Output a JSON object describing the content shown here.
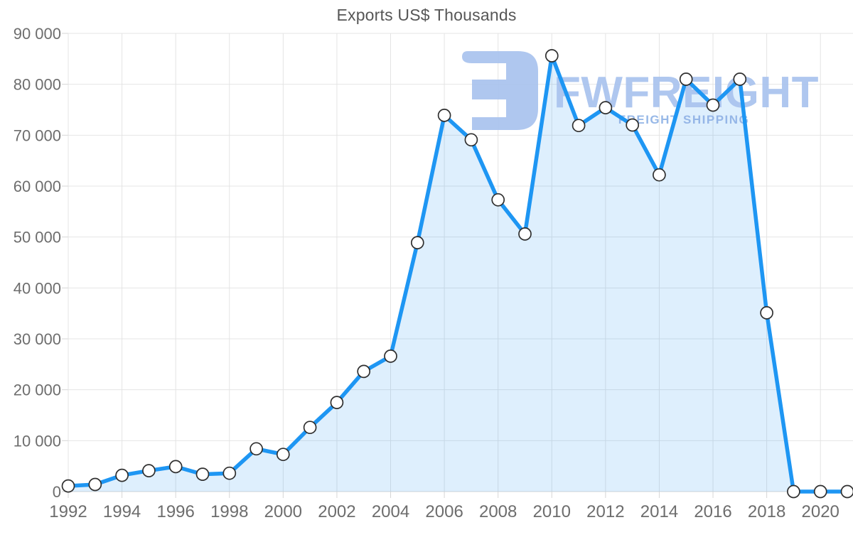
{
  "title": "Exports US$ Thousands",
  "watermark": {
    "logo_icon": "fwfreight-logo-icon",
    "brand": "FWFREIGHT",
    "tagline": "FREIGHT SHIPPING",
    "brand_color": "#a9c3ee",
    "tagline_color": "#8fb2e6"
  },
  "chart_data": {
    "type": "area",
    "title": "Exports US$ Thousands",
    "xlabel": "",
    "ylabel": "",
    "x": [
      1992,
      1993,
      1994,
      1995,
      1996,
      1997,
      1998,
      1999,
      2000,
      2001,
      2002,
      2003,
      2004,
      2005,
      2006,
      2007,
      2008,
      2009,
      2010,
      2011,
      2012,
      2013,
      2014,
      2015,
      2016,
      2017,
      2018,
      2019,
      2020,
      2021
    ],
    "series": [
      {
        "name": "Exports US$ Thousands",
        "values": [
          1100,
          1400,
          3200,
          4100,
          4900,
          3400,
          3600,
          8400,
          7300,
          12600,
          17500,
          23600,
          26600,
          48900,
          73900,
          69100,
          57300,
          50600,
          85600,
          71900,
          75400,
          72000,
          62200,
          81000,
          75900,
          81000,
          35100,
          0,
          0,
          0
        ]
      }
    ],
    "ylim": [
      0,
      90000
    ],
    "ytick_step": 10000,
    "y_tick_labels": [
      "0",
      "10 000",
      "20 000",
      "30 000",
      "40 000",
      "50 000",
      "60 000",
      "70 000",
      "80 000",
      "90 000"
    ],
    "x_tick_labels": [
      "1992",
      "1994",
      "1996",
      "1998",
      "2000",
      "2002",
      "2004",
      "2006",
      "2008",
      "2010",
      "2012",
      "2014",
      "2016",
      "2018",
      "2020"
    ],
    "grid": true,
    "legend": false,
    "line_color": "#1e96f3",
    "area_color": "rgba(33,150,243,0.15)",
    "grid_color": "#e4e4e4",
    "axis_color": "#d6d6d6",
    "tick_label_color": "#6d6d6d",
    "marker_fill": "#ffffff",
    "marker_stroke": "#2f2f2f"
  }
}
